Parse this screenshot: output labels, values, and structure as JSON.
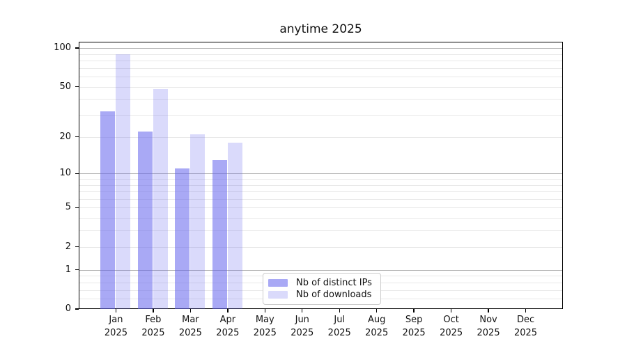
{
  "chart_data": {
    "type": "bar",
    "title": "anytime 2025",
    "categories": [
      "Jan 2025",
      "Feb 2025",
      "Mar 2025",
      "Apr 2025",
      "May 2025",
      "Jun 2025",
      "Jul 2025",
      "Aug 2025",
      "Sep 2025",
      "Oct 2025",
      "Nov 2025",
      "Dec 2025"
    ],
    "series": [
      {
        "name": "Nb of distinct IPs",
        "color": "#6363ed",
        "fill_opacity": 0.55,
        "values": [
          32,
          22,
          11,
          13,
          0,
          0,
          0,
          0,
          0,
          0,
          0,
          0
        ]
      },
      {
        "name": "Nb of downloads",
        "color": "#6363ed",
        "fill_opacity": 0.24,
        "values": [
          89,
          48,
          21,
          18,
          0,
          0,
          0,
          0,
          0,
          0,
          0,
          0
        ]
      }
    ],
    "yscale": "log10(1+y)",
    "yticks": [
      0,
      1,
      2,
      5,
      10,
      20,
      50,
      100
    ],
    "ylim": [
      0,
      112
    ],
    "xlabel": "",
    "ylabel": "",
    "grid": {
      "major_color": "#b2b2b2",
      "minor_color": "#e8e8e8",
      "grid_on": true
    },
    "legend": {
      "position": "inside-bottom-center",
      "border_color": "#cccccc",
      "background": "#ffffff"
    },
    "text_color": "#111111",
    "axis_color": "#000000"
  }
}
